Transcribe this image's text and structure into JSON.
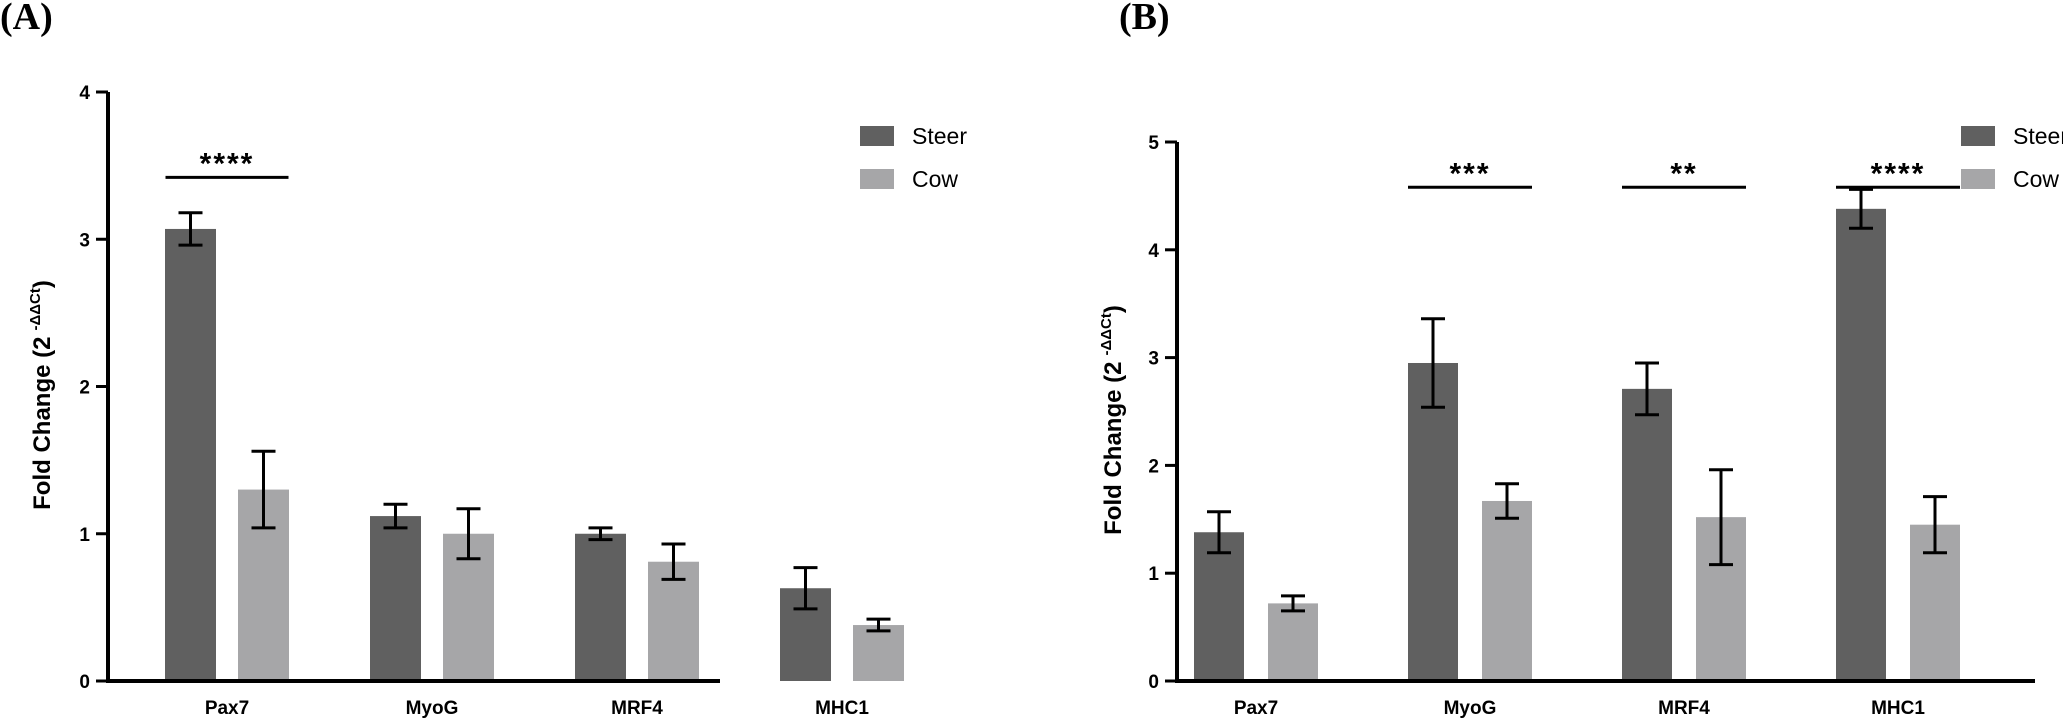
{
  "colors": {
    "steer": "#606060",
    "cow": "#a6a6a8"
  },
  "chart_data": [
    {
      "panel_label": "(A)",
      "type": "bar",
      "categories": [
        "Pax7",
        "MyoG",
        "MRF4",
        "MHC1"
      ],
      "series": [
        {
          "name": "Steer",
          "values": [
            3.07,
            1.12,
            1.0,
            0.63
          ],
          "errors": [
            0.11,
            0.08,
            0.04,
            0.14
          ]
        },
        {
          "name": "Cow",
          "values": [
            1.3,
            1.0,
            0.81,
            0.38
          ],
          "errors": [
            0.26,
            0.17,
            0.12,
            0.04
          ]
        }
      ],
      "ylabel": "Fold Change (2",
      "ylabel_sup": "-ΔΔCt",
      "ylabel_close": ")",
      "ylim": [
        0,
        4
      ],
      "yticks": [
        0,
        1,
        2,
        3,
        4
      ],
      "legend": "top-right",
      "significance": [
        {
          "category": "Pax7",
          "label": "****",
          "y": 3.42
        }
      ]
    },
    {
      "panel_label": "(B)",
      "type": "bar",
      "categories": [
        "Pax7",
        "MyoG",
        "MRF4",
        "MHC1"
      ],
      "series": [
        {
          "name": "Steer",
          "values": [
            1.38,
            2.95,
            2.71,
            4.38
          ],
          "errors": [
            0.19,
            0.41,
            0.24,
            0.18
          ]
        },
        {
          "name": "Cow",
          "values": [
            0.72,
            1.67,
            1.52,
            1.45
          ],
          "errors": [
            0.07,
            0.16,
            0.44,
            0.26
          ]
        }
      ],
      "ylabel": "Fold Change (2",
      "ylabel_sup": "-ΔΔCt",
      "ylabel_close": ")",
      "ylim": [
        0,
        5
      ],
      "yticks": [
        0,
        1,
        2,
        3,
        4,
        5
      ],
      "legend": "top-right",
      "significance": [
        {
          "category": "MyoG",
          "label": "***",
          "y": 4.58
        },
        {
          "category": "MRF4",
          "label": "**",
          "y": 4.58
        },
        {
          "category": "MHC1",
          "label": "****",
          "y": 4.58
        }
      ]
    }
  ]
}
